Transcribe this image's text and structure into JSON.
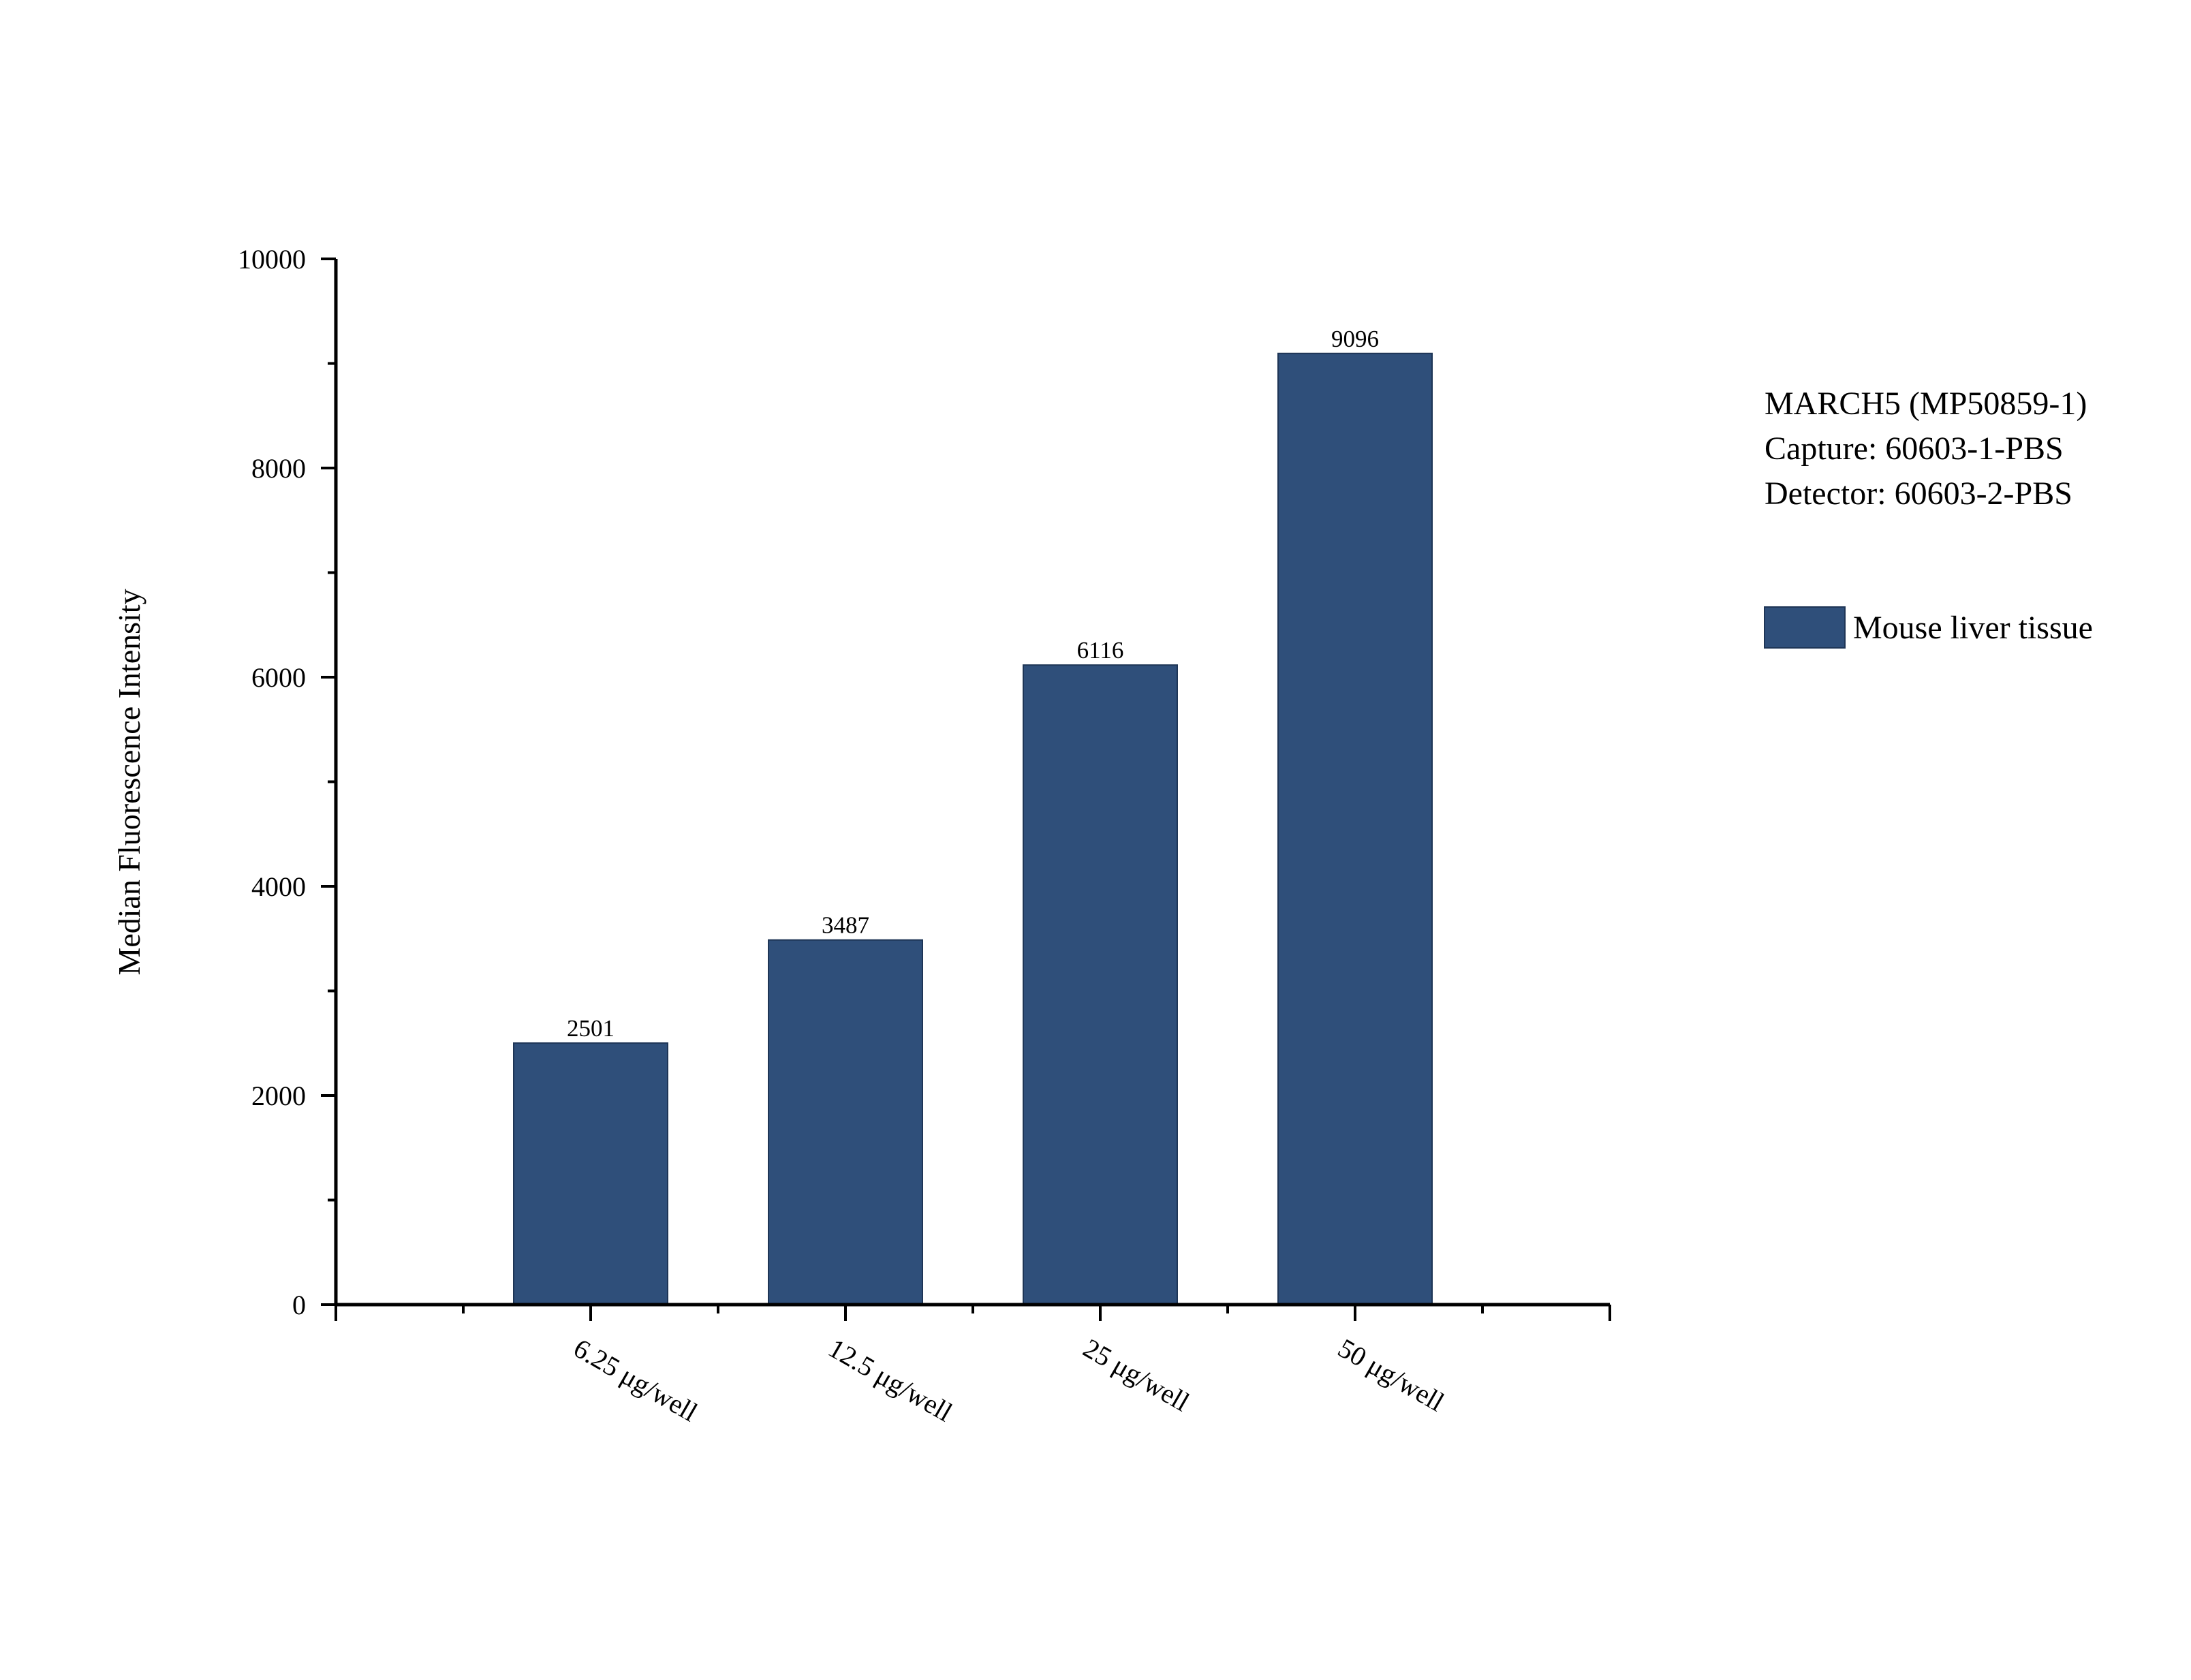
{
  "chart_data": {
    "type": "bar",
    "categories": [
      "6.25 μg/well",
      "12.5 μg/well",
      "25 μg/well",
      "50 μg/well"
    ],
    "series": [
      {
        "name": "Mouse liver tissue",
        "values": [
          2501,
          3487,
          6116,
          9096
        ],
        "color": "#2f4f7a"
      }
    ],
    "data_labels": [
      "2501",
      "3487",
      "6116",
      "9096"
    ],
    "xlabel": "",
    "ylabel": "Median Fluorescence Intensity",
    "ylim": [
      0,
      10000
    ],
    "yticks": [
      0,
      2000,
      4000,
      6000,
      8000,
      10000
    ],
    "ytick_labels": [
      "0",
      "2000",
      "4000",
      "6000",
      "8000",
      "10000"
    ],
    "annotations": [
      "MARCH5 (MP50859-1)",
      "Capture: 60603-1-PBS",
      "Detector: 60603-2-PBS"
    ],
    "legend_position": "right",
    "grid": false
  }
}
